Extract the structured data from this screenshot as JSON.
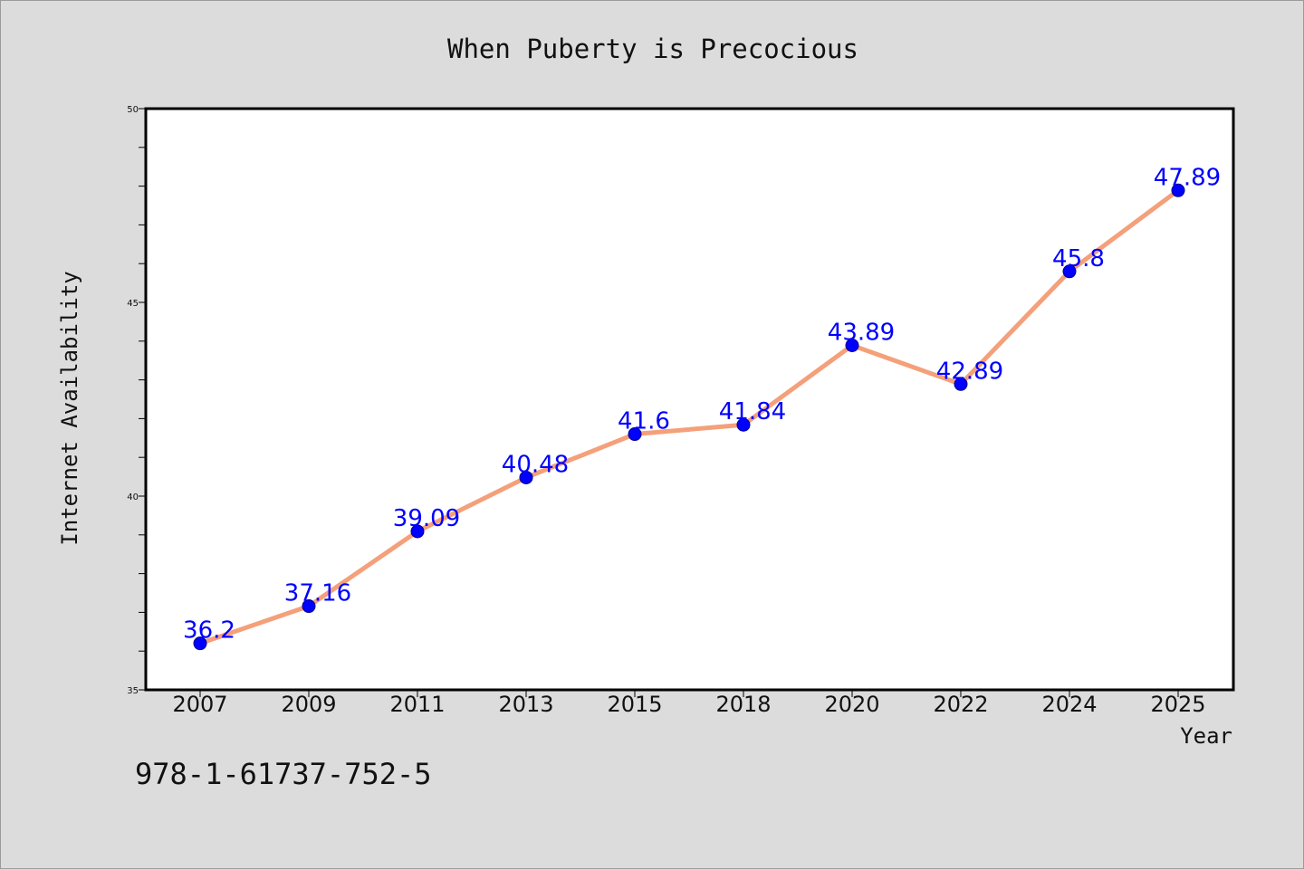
{
  "chart_data": {
    "type": "line",
    "title": "When Puberty is Precocious",
    "xlabel": "Year",
    "ylabel": "Internet Availability",
    "categories": [
      "2007",
      "2009",
      "2011",
      "2013",
      "2015",
      "2018",
      "2020",
      "2022",
      "2024",
      "2025"
    ],
    "series": [
      {
        "values": [
          36.2,
          37.16,
          39.09,
          40.48,
          41.6,
          41.84,
          43.89,
          42.89,
          45.8,
          47.89
        ],
        "labels": [
          "36.2",
          "37.16",
          "39.09",
          "40.48",
          "41.6",
          "41.84",
          "43.89",
          "42.89",
          "45.8",
          "47.89"
        ],
        "line_color": "#f4a07a",
        "marker_color": "#0000ff"
      }
    ],
    "ylim": [
      35,
      50
    ],
    "yticks": [
      "35",
      "40",
      "45",
      "50"
    ],
    "grid": false,
    "legend": "none"
  },
  "footer": {
    "text": "978-1-61737-752-5"
  }
}
